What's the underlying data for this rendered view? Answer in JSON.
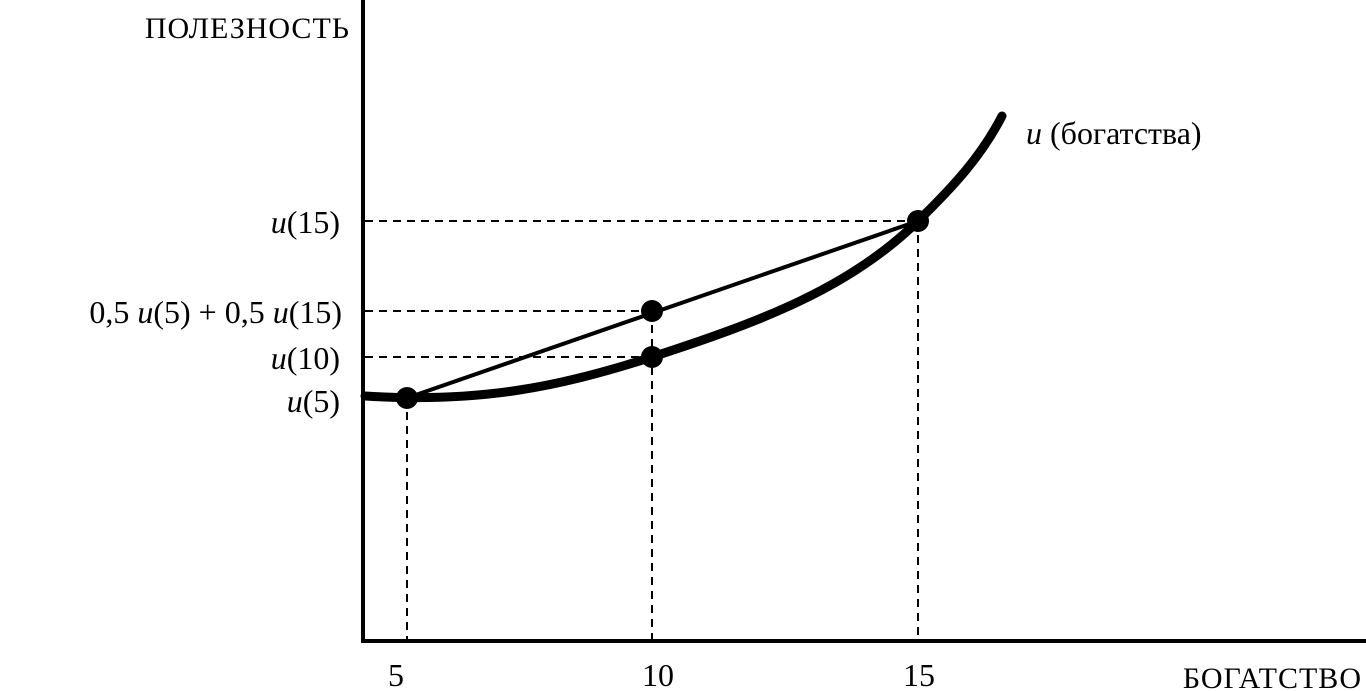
{
  "axes": {
    "y_title": "ПОЛЕЗНОСТЬ",
    "x_title": "БОГАТСТВО"
  },
  "x_ticks": [
    "5",
    "10",
    "15"
  ],
  "y_labels": {
    "u15": {
      "fn": "u",
      "arg": "(15)"
    },
    "avg": {
      "coef1": "0,5",
      "fn1": "u",
      "arg1": "(5)",
      "plus": "+",
      "coef2": "0,5",
      "fn2": "u",
      "arg2": "(15)"
    },
    "u10": {
      "fn": "u",
      "arg": "(10)"
    },
    "u5": {
      "fn": "u",
      "arg": "(5)"
    }
  },
  "curve_label": {
    "fn": "u",
    "rest": "(богатства)"
  },
  "colors": {
    "ink": "#000000",
    "background": "#ffffff"
  }
}
